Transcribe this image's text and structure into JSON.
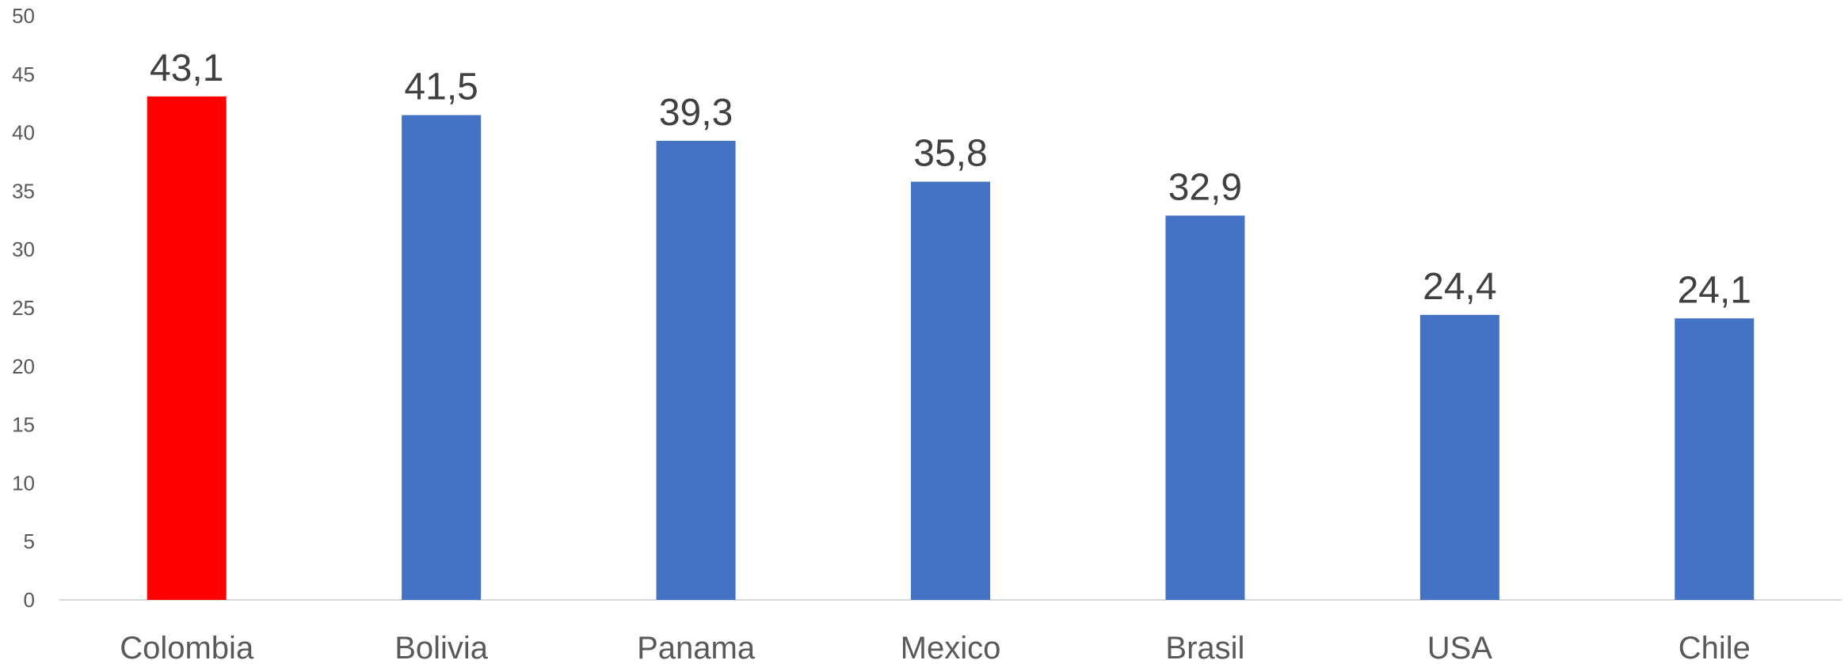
{
  "chart_data": {
    "type": "bar",
    "categories": [
      "Colombia",
      "Bolivia",
      "Panama",
      "Mexico",
      "Brasil",
      "USA",
      "Chile"
    ],
    "values": [
      43.1,
      41.5,
      39.3,
      35.8,
      32.9,
      24.4,
      24.1
    ],
    "data_labels": [
      "43,1",
      "41,5",
      "39,3",
      "35,8",
      "32,9",
      "24,4",
      "24,1"
    ],
    "ylim": [
      0,
      50
    ],
    "y_ticks": [
      0,
      5,
      10,
      15,
      20,
      25,
      30,
      35,
      40,
      45,
      50
    ],
    "y_tick_labels": [
      "0",
      "5",
      "10",
      "15",
      "20",
      "25",
      "30",
      "35",
      "40",
      "45",
      "50"
    ],
    "title": "",
    "xlabel": "",
    "ylabel": "",
    "grid": false,
    "legend": "none",
    "colors": {
      "default_bar": "#4472C4",
      "highlight_bar": "#FF0000",
      "axis_line": "#D9D9D9"
    },
    "highlight_category": "Colombia"
  }
}
